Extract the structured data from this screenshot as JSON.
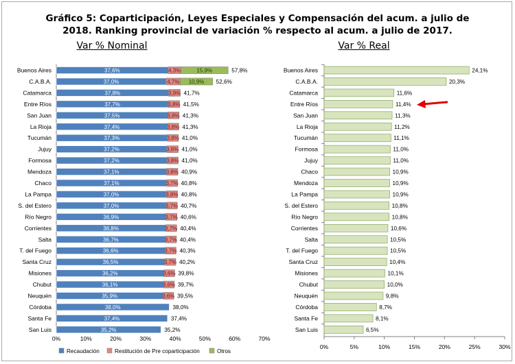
{
  "title": {
    "line1": "Gráfico 5: Coparticipación, Leyes Especiales y Compensación del acum. a julio de",
    "line2": "2018. Ranking provincial de variación % respecto al acum. a julio de 2017."
  },
  "colors": {
    "recaudacion": "#4f81bd",
    "restitucion": "#dd8782",
    "otros": "#9bbb59",
    "real": "#d7e4bd",
    "arrow": "#e00000"
  },
  "chart_data": [
    {
      "type": "bar",
      "title": "Var % Nominal",
      "orientation": "horizontal",
      "stacked": true,
      "categories": [
        "Buenos Aires",
        "C.A.B.A.",
        "Catamarca",
        "Entre Ríos",
        "San Juan",
        "La Rioja",
        "Tucumán",
        "Jujuy",
        "Formosa",
        "Mendoza",
        "Chaco",
        "La Pampa",
        "S. del Estero",
        "Río Negro",
        "Corrientes",
        "Salta",
        "T. del Fuego",
        "Santa Cruz",
        "Misiones",
        "Chubut",
        "Neuquén",
        "Córdoba",
        "Santa Fe",
        "San Luis"
      ],
      "series": [
        {
          "name": "Recaudación",
          "values": [
            37.6,
            37.0,
            37.8,
            37.7,
            37.5,
            37.4,
            37.3,
            37.2,
            37.2,
            37.1,
            37.1,
            37.0,
            37.0,
            36.9,
            36.8,
            36.7,
            36.6,
            36.5,
            36.2,
            36.1,
            35.9,
            38.0,
            37.4,
            35.2
          ],
          "labels": [
            "37,6%",
            "37,0%",
            "37,8%",
            "37,7%",
            "37,5%",
            "37,4%",
            "37,3%",
            "37,2%",
            "37,2%",
            "37,1%",
            "37,1%",
            "37,0%",
            "37,0%",
            "36,9%",
            "36,8%",
            "36,7%",
            "36,6%",
            "36,5%",
            "36,2%",
            "36,1%",
            "35,9%",
            "38,0%",
            "37,4%",
            "35,2%"
          ]
        },
        {
          "name": "Restitución de Pre coparticipación",
          "values": [
            4.3,
            4.7,
            3.9,
            3.8,
            3.8,
            3.8,
            3.8,
            3.8,
            3.8,
            3.8,
            3.7,
            3.8,
            3.7,
            3.7,
            3.7,
            3.7,
            3.7,
            3.7,
            3.6,
            3.6,
            3.6,
            0,
            0,
            0
          ],
          "labels": [
            "4,3%",
            "4,7%",
            "3,9%",
            "3,8%",
            "3,8%",
            "3,8%",
            "3,8%",
            "3,8%",
            "3,8%",
            "3,8%",
            "3,7%",
            "3,8%",
            "3,7%",
            "3,7%",
            "3,7%",
            "3,7%",
            "3,7%",
            "3,7%",
            "3,6%",
            "3,6%",
            "3,6%",
            "",
            "",
            ""
          ]
        },
        {
          "name": "Otros",
          "values": [
            15.9,
            10.9,
            0,
            0,
            0,
            0,
            0,
            0,
            0,
            0,
            0,
            0,
            0,
            0,
            0,
            0,
            0,
            0,
            0,
            0,
            0,
            0,
            0,
            0
          ],
          "labels": [
            "15,9%",
            "10,9%",
            "",
            "",
            "",
            "",
            "",
            "",
            "",
            "",
            "",
            "",
            "",
            "",
            "",
            "",
            "",
            "",
            "",
            "",
            "",
            "",
            "",
            ""
          ]
        }
      ],
      "totals": [
        "57,8%",
        "52,6%",
        "41,7%",
        "41,5%",
        "41,3%",
        "41,3%",
        "41,0%",
        "41,0%",
        "41,0%",
        "40,9%",
        "40,8%",
        "40,8%",
        "40,7%",
        "40,6%",
        "40,4%",
        "40,4%",
        "40,3%",
        "40,2%",
        "39,8%",
        "39,7%",
        "39,5%",
        "38,0%",
        "37,4%",
        "35,2%"
      ],
      "xlim": [
        0,
        70
      ],
      "xticks": [
        "0%",
        "10%",
        "20%",
        "30%",
        "40%",
        "50%",
        "60%",
        "70%"
      ],
      "legend_position": "bottom",
      "grid": false
    },
    {
      "type": "bar",
      "title": "Var % Real",
      "orientation": "horizontal",
      "categories": [
        "Buenos Aires",
        "C.A.B.A.",
        "Catamarca",
        "Entre Ríos",
        "San Juan",
        "La Rioja",
        "Tucumán",
        "Formosa",
        "Jujuy",
        "Chaco",
        "Mendoza",
        "La Pampa",
        "S. del Estero",
        "Río Negro",
        "Corrientes",
        "Salta",
        "T. del Fuego",
        "Santa Cruz",
        "Misiones",
        "Chubut",
        "Neuquén",
        "Córdoba",
        "Santa Fe",
        "San Luis"
      ],
      "values": [
        24.1,
        20.3,
        11.6,
        11.4,
        11.3,
        11.2,
        11.1,
        11.0,
        11.0,
        10.9,
        10.9,
        10.9,
        10.8,
        10.8,
        10.6,
        10.5,
        10.5,
        10.4,
        10.1,
        10.0,
        9.8,
        8.7,
        8.1,
        6.5
      ],
      "labels": [
        "24,1%",
        "20,3%",
        "11,6%",
        "11,4%",
        "11,3%",
        "11,2%",
        "11,1%",
        "11,0%",
        "11,0%",
        "10,9%",
        "10,9%",
        "10,9%",
        "10,8%",
        "10,8%",
        "10,6%",
        "10,5%",
        "10,5%",
        "10,4%",
        "10,1%",
        "10,0%",
        "9,8%",
        "8,7%",
        "8,1%",
        "6,5%"
      ],
      "xlim": [
        0,
        30
      ],
      "xticks": [
        "0%",
        "5%",
        "10%",
        "15%",
        "20%",
        "25%",
        "30%"
      ],
      "highlight_category": "Entre Ríos",
      "grid": false
    }
  ]
}
